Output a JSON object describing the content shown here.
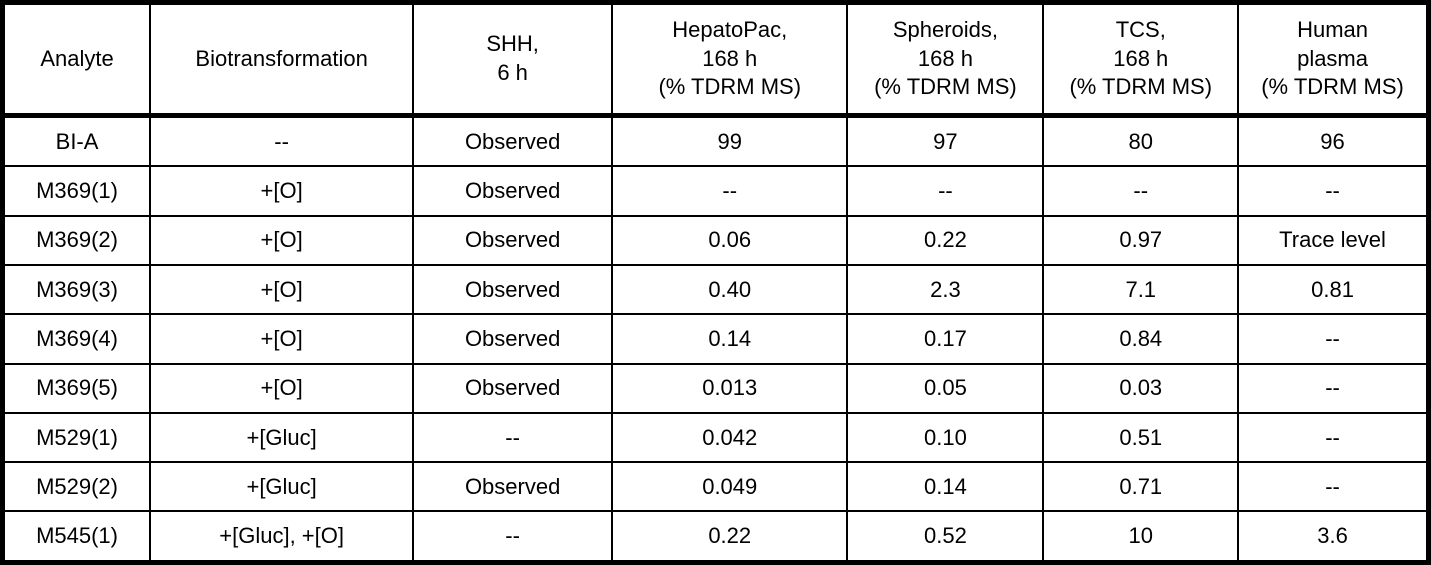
{
  "colors": {
    "border": "#000000",
    "text": "#000000",
    "background": "#ffffff"
  },
  "table": {
    "columns": [
      {
        "id": "analyte",
        "label": "Analyte"
      },
      {
        "id": "biotransformation",
        "label": "Biotransformation"
      },
      {
        "id": "shh",
        "label": "SHH,\n6 h"
      },
      {
        "id": "hepatopac",
        "label": "HepatoPac,\n168 h\n(% TDRM MS)"
      },
      {
        "id": "spheroids",
        "label": "Spheroids,\n168 h\n(% TDRM MS)"
      },
      {
        "id": "tcs",
        "label": "TCS,\n168 h\n(% TDRM MS)"
      },
      {
        "id": "human_plasma",
        "label": "Human\nplasma\n(% TDRM MS)"
      }
    ],
    "rows": [
      [
        "BI-A",
        "--",
        "Observed",
        "99",
        "97",
        "80",
        "96"
      ],
      [
        "M369(1)",
        "+[O]",
        "Observed",
        "--",
        "--",
        "--",
        "--"
      ],
      [
        "M369(2)",
        "+[O]",
        "Observed",
        "0.06",
        "0.22",
        "0.97",
        "Trace level"
      ],
      [
        "M369(3)",
        "+[O]",
        "Observed",
        "0.40",
        "2.3",
        "7.1",
        "0.81"
      ],
      [
        "M369(4)",
        "+[O]",
        "Observed",
        "0.14",
        "0.17",
        "0.84",
        "--"
      ],
      [
        "M369(5)",
        "+[O]",
        "Observed",
        "0.013",
        "0.05",
        "0.03",
        "--"
      ],
      [
        "M529(1)",
        "+[Gluc]",
        "--",
        "0.042",
        "0.10",
        "0.51",
        "--"
      ],
      [
        "M529(2)",
        "+[Gluc]",
        "Observed",
        "0.049",
        "0.14",
        "0.71",
        "--"
      ],
      [
        "M545(1)",
        "+[Gluc], +[O]",
        "--",
        "0.22",
        "0.52",
        "10",
        "3.6"
      ]
    ]
  }
}
